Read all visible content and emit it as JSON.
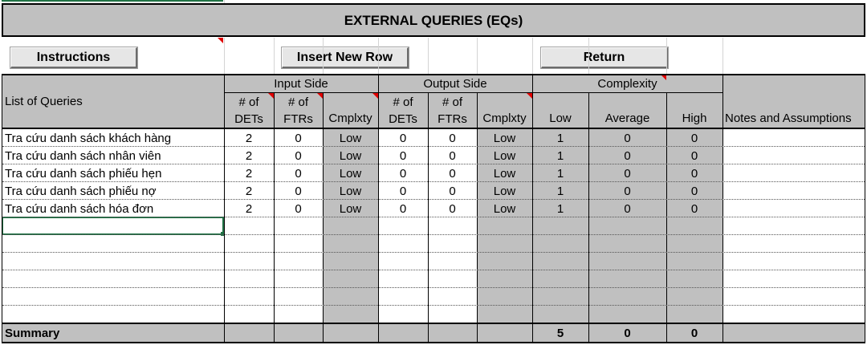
{
  "title": "EXTERNAL QUERIES (EQs)",
  "buttons": {
    "instructions": "Instructions",
    "insert_row": "Insert New Row",
    "return": "Return"
  },
  "headers": {
    "list": "List of Queries",
    "input_side": "Input Side",
    "output_side": "Output Side",
    "complexity": "Complexity",
    "dets": "# of DETs",
    "ftrs": "# of FTRs",
    "cmplxty": "Cmplxty",
    "low": "Low",
    "average": "Average",
    "high": "High",
    "notes": "Notes and Assumptions"
  },
  "rows": [
    {
      "name": "Tra cứu danh sách khách hàng",
      "in_dets": "2",
      "in_ftrs": "0",
      "in_cmplx": "Low",
      "out_dets": "0",
      "out_ftrs": "0",
      "out_cmplx": "Low",
      "low": "1",
      "avg": "0",
      "high": "0"
    },
    {
      "name": "Tra cứu danh sách nhân viên",
      "in_dets": "2",
      "in_ftrs": "0",
      "in_cmplx": "Low",
      "out_dets": "0",
      "out_ftrs": "0",
      "out_cmplx": "Low",
      "low": "1",
      "avg": "0",
      "high": "0"
    },
    {
      "name": "Tra cứu danh sách phiếu hẹn",
      "in_dets": "2",
      "in_ftrs": "0",
      "in_cmplx": "Low",
      "out_dets": "0",
      "out_ftrs": "0",
      "out_cmplx": "Low",
      "low": "1",
      "avg": "0",
      "high": "0"
    },
    {
      "name": "Tra cứu danh sách phiếu nợ",
      "in_dets": "2",
      "in_ftrs": "0",
      "in_cmplx": "Low",
      "out_dets": "0",
      "out_ftrs": "0",
      "out_cmplx": "Low",
      "low": "1",
      "avg": "0",
      "high": "0"
    },
    {
      "name": "Tra cứu danh sách hóa đơn",
      "in_dets": "2",
      "in_ftrs": "0",
      "in_cmplx": "Low",
      "out_dets": "0",
      "out_ftrs": "0",
      "out_cmplx": "Low",
      "low": "1",
      "avg": "0",
      "high": "0"
    }
  ],
  "summary": {
    "label": "Summary",
    "low": "5",
    "avg": "0",
    "high": "0"
  }
}
